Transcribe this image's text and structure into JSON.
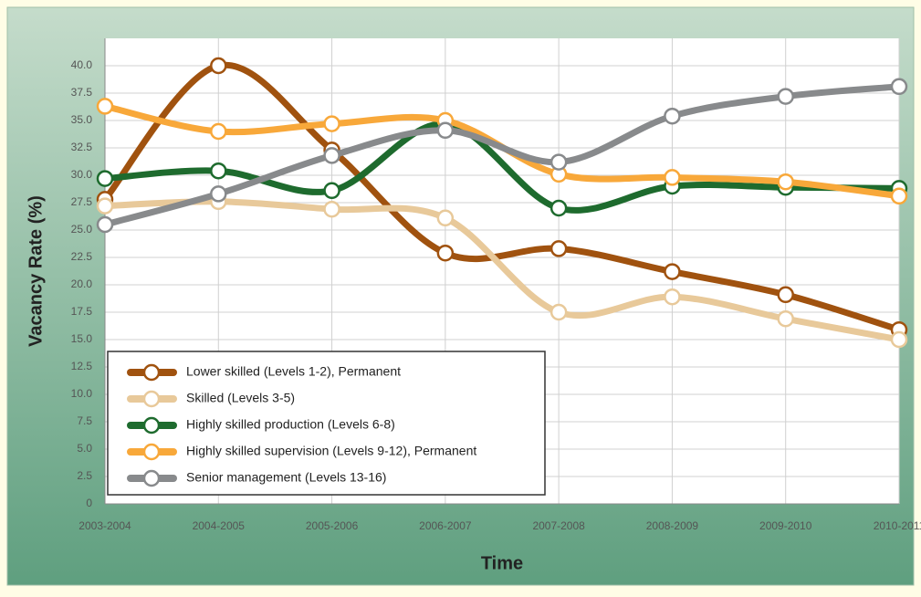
{
  "chart_data": {
    "type": "line",
    "ylabel": "Vacancy Rate (%)",
    "xlabel": "Time",
    "categories": [
      "2003-2004",
      "2004-2005",
      "2005-2006",
      "2006-2007",
      "2007-2008",
      "2008-2009",
      "2009-2010",
      "2010-2011"
    ],
    "series": [
      {
        "name": "Lower skilled (Levels 1-2), Permanent",
        "color": "#a0520f",
        "values": [
          27.8,
          40.0,
          32.3,
          22.9,
          23.3,
          21.2,
          19.1,
          15.9
        ]
      },
      {
        "name": "Skilled (Levels 3-5)",
        "color": "#e8c99a",
        "values": [
          27.2,
          27.6,
          26.9,
          26.1,
          17.5,
          18.9,
          16.9,
          15.0
        ]
      },
      {
        "name": "Highly skilled production (Levels 6-8)",
        "color": "#1e6b2e",
        "values": [
          29.7,
          30.4,
          28.6,
          34.7,
          27.0,
          29.0,
          28.9,
          28.8
        ]
      },
      {
        "name": "Highly skilled supervision (Levels 9-12), Permanent",
        "color": "#f8a83a",
        "values": [
          36.3,
          34.0,
          34.7,
          35.0,
          30.1,
          29.8,
          29.4,
          28.1
        ]
      },
      {
        "name": "Senior management (Levels 13-16)",
        "color": "#888a8c",
        "values": [
          25.5,
          28.3,
          31.8,
          34.1,
          31.2,
          35.4,
          37.2,
          38.1
        ]
      }
    ],
    "ylim": [
      0,
      42.5
    ],
    "yticks": [
      0,
      2.5,
      {
        "value": 5,
        "label": "5.0"
      },
      7.5,
      {
        "value": 10,
        "label": "10.0"
      },
      12.5,
      {
        "value": 15,
        "label": "15.0"
      },
      17.5,
      {
        "value": 20,
        "label": "20.0"
      },
      22.5,
      {
        "value": 25,
        "label": "25.0"
      },
      27.5,
      {
        "value": 30,
        "label": "30.0"
      },
      32.5,
      {
        "value": 35,
        "label": "35.0"
      },
      37.5,
      {
        "value": 40,
        "label": "40.0"
      }
    ],
    "grid": true,
    "legend": "lower left"
  }
}
